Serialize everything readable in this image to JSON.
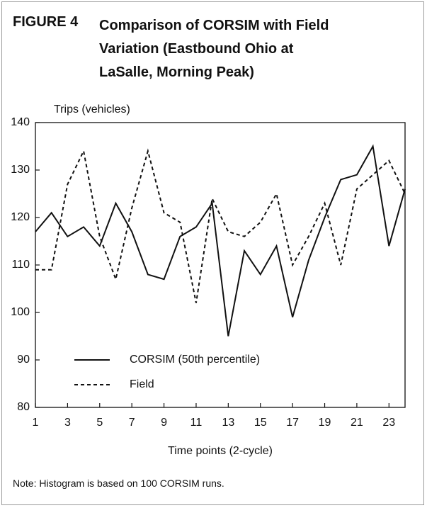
{
  "chart_data": {
    "type": "line",
    "figure_label": "FIGURE 4",
    "title": "Comparison of CORSIM with Field Variation (Eastbound Ohio at LaSalle, Morning Peak)",
    "y_label": "Trips (vehicles)",
    "x_label": "Time points (2-cycle)",
    "note": "Note: Histogram is based on 100 CORSIM runs.",
    "x": [
      1,
      2,
      3,
      4,
      5,
      6,
      7,
      8,
      9,
      10,
      11,
      12,
      13,
      14,
      15,
      16,
      17,
      18,
      19,
      20,
      21,
      22,
      23,
      24
    ],
    "series": [
      {
        "name": "CORSIM (50th percentile)",
        "color": "#111111",
        "line_style": "solid",
        "values": [
          117,
          121,
          116,
          118,
          114,
          123,
          117,
          108,
          107,
          116,
          118,
          123,
          95,
          113,
          108,
          114,
          99,
          111,
          120,
          128,
          129,
          135,
          114,
          126
        ]
      },
      {
        "name": "Field",
        "color": "#111111",
        "line_style": "dashed",
        "values": [
          109,
          109,
          127,
          134,
          116,
          107,
          122,
          134,
          121,
          119,
          102,
          124,
          117,
          116,
          119,
          125,
          110,
          116,
          123,
          110,
          126,
          129,
          132,
          125
        ]
      }
    ],
    "xlim": [
      1,
      24
    ],
    "xticks": [
      1,
      3,
      5,
      7,
      9,
      11,
      13,
      15,
      17,
      19,
      21,
      23
    ],
    "ylim": [
      80,
      140
    ],
    "yticks": [
      80,
      90,
      100,
      110,
      120,
      130,
      140
    ],
    "grid": false,
    "legend": "lower left"
  }
}
